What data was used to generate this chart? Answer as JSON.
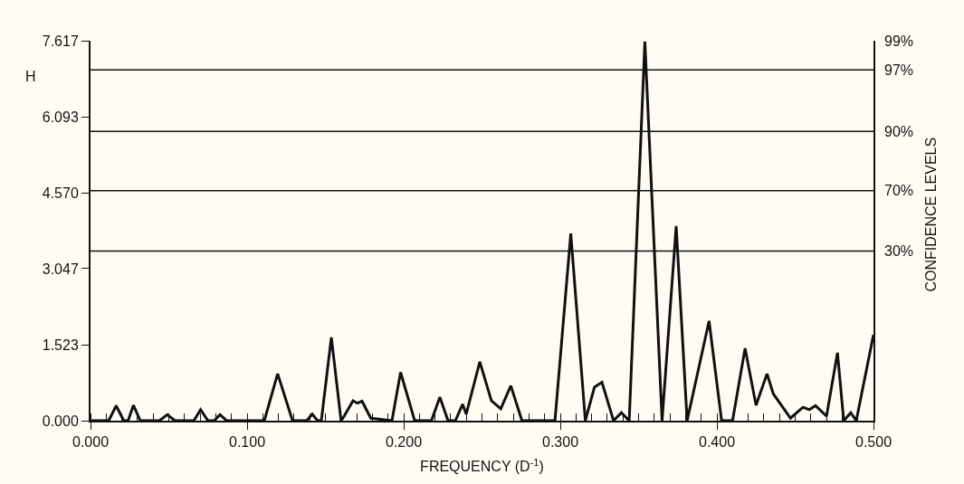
{
  "chart_data": {
    "type": "line",
    "xlabel": "FREQUENCY (D$^{-1}$)",
    "ylabel": "H",
    "y2label": "CONFIDENCE LEVELS",
    "xlim": [
      0,
      0.5
    ],
    "xticks": [
      {
        "value": 0,
        "label": "0.000"
      },
      {
        "value": 0.1,
        "label": "0.100"
      },
      {
        "value": 0.2,
        "label": "0.200"
      },
      {
        "value": 0.3,
        "label": "0.300"
      },
      {
        "value": 0.4,
        "label": "0.400"
      },
      {
        "value": 0.5,
        "label": "0.500"
      }
    ],
    "ylim": [
      0,
      7.617
    ],
    "yticks": [
      {
        "value": 0,
        "label": "0.000"
      },
      1.523,
      3.047,
      {
        "value": 4.57,
        "label": "4.570"
      },
      6.093,
      7.617
    ],
    "annotations": [
      "99%",
      "97%",
      "90%",
      "70%",
      "30%"
    ],
    "ref_lines": [
      {
        "axis": "y",
        "value": 7.03,
        "color": "#111111"
      },
      {
        "axis": "y",
        "value": 5.8,
        "color": "#111111"
      },
      {
        "axis": "y",
        "value": 4.61,
        "color": "#111111"
      },
      {
        "axis": "y",
        "value": 3.4,
        "color": "#111111"
      }
    ],
    "grid": false,
    "legend": false,
    "marker": "none",
    "line_style": "solid",
    "series": [
      {
        "color": "#111111",
        "x": [
          0,
          0.0116,
          0.0164,
          0.0212,
          0.024,
          0.0274,
          0.0318,
          0.044,
          0.049,
          0.054,
          0.066,
          0.0703,
          0.075,
          0.079,
          0.0827,
          0.087,
          0.111,
          0.1195,
          0.129,
          0.138,
          0.1416,
          0.145,
          0.1474,
          0.1538,
          0.16,
          0.162,
          0.1676,
          0.1705,
          0.1734,
          0.179,
          0.1925,
          0.198,
          0.207,
          0.2177,
          0.2231,
          0.2283,
          0.233,
          0.2376,
          0.2399,
          0.2486,
          0.256,
          0.262,
          0.2684,
          0.2755,
          0.2966,
          0.3067,
          0.316,
          0.3218,
          0.3266,
          0.334,
          0.339,
          0.344,
          0.354,
          0.365,
          0.374,
          0.381,
          0.395,
          0.403,
          0.41,
          0.418,
          0.425,
          0.432,
          0.436,
          0.447,
          0.455,
          0.459,
          0.463,
          0.47,
          0.477,
          0.481,
          0.4855,
          0.489,
          0.5
        ],
        "values": [
          0,
          0,
          0.3,
          0,
          0,
          0.31,
          0,
          0,
          0.12,
          0,
          0,
          0.22,
          0,
          0,
          0.12,
          0,
          0,
          0.94,
          0,
          0,
          0.13,
          0,
          0,
          1.67,
          0,
          0.09,
          0.4,
          0.35,
          0.39,
          0.05,
          0,
          0.97,
          0,
          0,
          0.47,
          0,
          0,
          0.33,
          0.13,
          1.18,
          0.4,
          0.24,
          0.7,
          0,
          0,
          3.75,
          0,
          0.67,
          0.77,
          0,
          0.16,
          0,
          7.6,
          0,
          3.9,
          0,
          2.0,
          0,
          0,
          1.45,
          0.31,
          0.94,
          0.54,
          0.05,
          0.27,
          0.22,
          0.3,
          0.09,
          1.36,
          0,
          0.16,
          0,
          1.72
        ]
      }
    ]
  }
}
